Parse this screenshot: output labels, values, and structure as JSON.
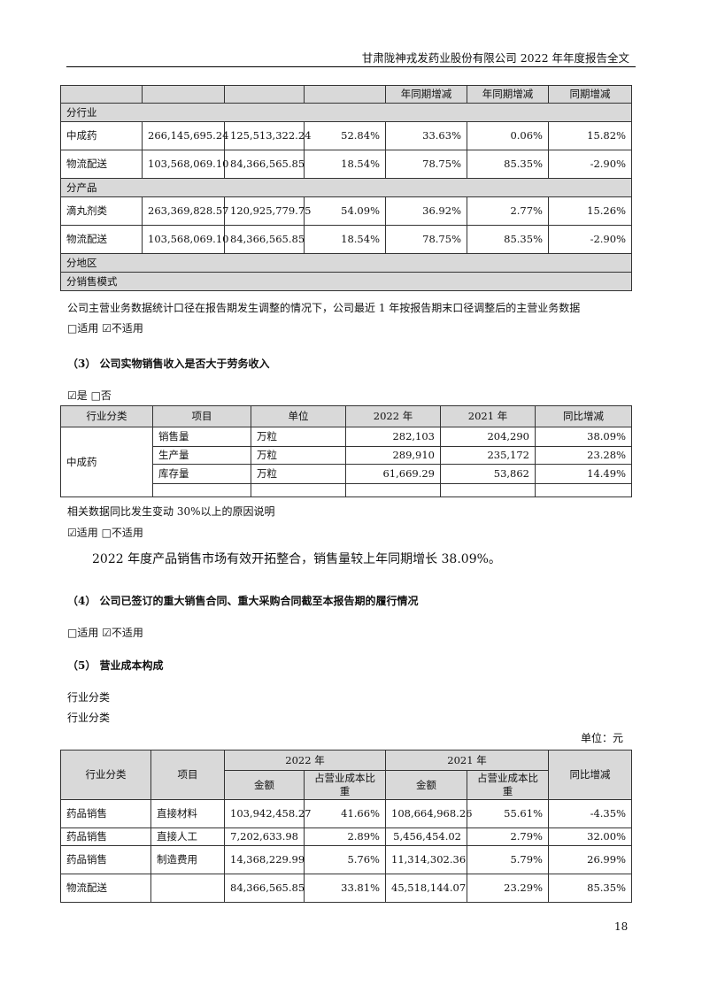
{
  "header": {
    "title": "甘肃陇神戎发药业股份有限公司 2022 年年度报告全文"
  },
  "table1": {
    "headers": [
      "",
      "",
      "",
      "",
      "年同期增减",
      "年同期增减",
      "同期增减"
    ],
    "sections": [
      {
        "label": "分行业",
        "rows": [
          [
            "中成药",
            "266,145,695.24",
            "125,513,322.24",
            "52.84%",
            "33.63%",
            "0.06%",
            "15.82%"
          ],
          [
            "物流配送",
            "103,568,069.10",
            "84,366,565.85",
            "18.54%",
            "78.75%",
            "85.35%",
            "-2.90%"
          ]
        ]
      },
      {
        "label": "分产品",
        "rows": [
          [
            "滴丸剂类",
            "263,369,828.57",
            "120,925,779.75",
            "54.09%",
            "36.92%",
            "2.77%",
            "15.26%"
          ],
          [
            "物流配送",
            "103,568,069.10",
            "84,366,565.85",
            "18.54%",
            "78.75%",
            "85.35%",
            "-2.90%"
          ]
        ]
      },
      {
        "label": "分地区",
        "rows": []
      },
      {
        "label": "分销售模式",
        "rows": []
      }
    ]
  },
  "note1": "公司主营业务数据统计口径在报告期发生调整的情况下，公司最近 1 年按报告期末口径调整后的主营业务数据",
  "check1": "□适用 ☑不适用",
  "sec3": {
    "title": "（3） 公司实物销售收入是否大于劳务收入",
    "check": "☑是 □否"
  },
  "table2": {
    "headers": [
      "行业分类",
      "项目",
      "单位",
      "2022 年",
      "2021 年",
      "同比增减"
    ],
    "category": "中成药",
    "rows": [
      [
        "销售量",
        "万粒",
        "282,103",
        "204,290",
        "38.09%"
      ],
      [
        "生产量",
        "万粒",
        "289,910",
        "235,172",
        "23.28%"
      ],
      [
        "库存量",
        "万粒",
        "61,669.29",
        "53,862",
        "14.49%"
      ],
      [
        "",
        "",
        "",
        "",
        ""
      ]
    ]
  },
  "note2": "相关数据同比发生变动 30%以上的原因说明",
  "check2": "☑适用 □不适用",
  "para": "2022 年度产品销售市场有效开拓整合，销售量较上年同期增长 38.09%。",
  "sec4": {
    "title": "（4） 公司已签订的重大销售合同、重大采购合同截至本报告期的履行情况",
    "check": "□适用 ☑不适用"
  },
  "sec5": {
    "title": "（5） 营业成本构成",
    "line1": "行业分类",
    "line2": "行业分类",
    "unit": "单位：元"
  },
  "table3": {
    "h_cat": "行业分类",
    "h_item": "项目",
    "h_2022": "2022 年",
    "h_2021": "2021 年",
    "h_amt": "金额",
    "h_ratio": "占营业成本比重",
    "h_yoy": "同比增减",
    "rows": [
      [
        "药品销售",
        "直接材料",
        "103,942,458.27",
        "41.66%",
        "108,664,968.26",
        "55.61%",
        "-4.35%"
      ],
      [
        "药品销售",
        "直接人工",
        "7,202,633.98",
        "2.89%",
        "5,456,454.02",
        "2.79%",
        "32.00%"
      ],
      [
        "药品销售",
        "制造费用",
        "14,368,229.99",
        "5.76%",
        "11,314,302.36",
        "5.79%",
        "26.99%"
      ],
      [
        "物流配送",
        "",
        "84,366,565.85",
        "33.81%",
        "45,518,144.07",
        "23.29%",
        "85.35%"
      ]
    ]
  },
  "page_number": "18"
}
